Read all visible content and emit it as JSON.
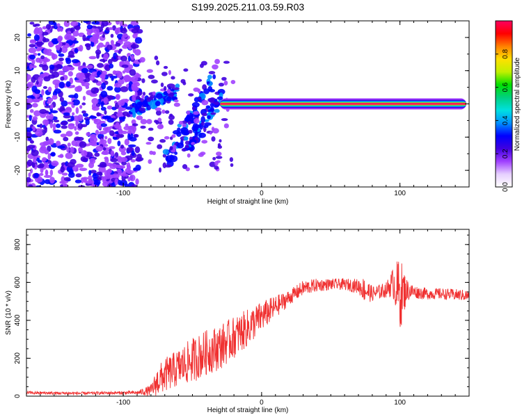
{
  "title": "S199.2025.211.03.59.R03",
  "colors": {
    "signal": "#f03030",
    "scatter": "#8a2be2",
    "frame": "#000000"
  },
  "colorbar": {
    "label": "Normalized spectral amplitude",
    "ticks": [
      "0.0",
      "0.2",
      "0.4",
      "0.6",
      "0.8"
    ],
    "range": [
      0,
      1
    ],
    "stops": [
      "#ffffff",
      "#e6d0ff",
      "#a040ff",
      "#4000e0",
      "#0000ff",
      "#0090ff",
      "#00e0e0",
      "#00d080",
      "#00e000",
      "#c0f000",
      "#ffe000",
      "#ff8000",
      "#ff0000",
      "#ff0060"
    ]
  },
  "chart_data": [
    {
      "type": "heatmap",
      "xlabel": "Height of straight line (km)",
      "ylabel": "Frequency (Hz)",
      "xlim": [
        -170,
        150
      ],
      "ylim": [
        -25,
        25
      ],
      "xticks": [
        -100,
        0,
        100
      ],
      "xtick_labels": [
        "-100",
        "0",
        "100"
      ],
      "yticks": [
        -20,
        -10,
        0,
        10,
        20
      ],
      "ytick_labels": [
        "-20",
        "-10",
        "0",
        "10",
        "20"
      ],
      "features": {
        "noise_region_x": [
          -170,
          -88
        ],
        "chirp_structures": [
          {
            "x": [
              -70,
              -35
            ],
            "y_start": -18,
            "y_end": 8
          },
          {
            "x": [
              -95,
              -60
            ],
            "y_start": -2,
            "y_end": 4
          },
          {
            "x": [
              -55,
              -30
            ],
            "y_start": -14,
            "y_end": 2
          }
        ],
        "carrier_line": {
          "x": [
            -30,
            150
          ],
          "frequency_hz": 0,
          "peak_amplitude": 0.95
        }
      }
    },
    {
      "type": "line",
      "xlabel": "Height of straight line (km)",
      "ylabel": "SNR (10 * v/v)",
      "xlim": [
        -170,
        150
      ],
      "ylim": [
        0,
        880
      ],
      "xticks": [
        -100,
        0,
        100
      ],
      "xtick_labels": [
        "-100",
        "0",
        "100"
      ],
      "yticks": [
        0,
        200,
        400,
        600,
        800
      ],
      "ytick_labels": [
        "0",
        "200",
        "400",
        "600",
        "800"
      ],
      "x": [
        -170,
        -150,
        -130,
        -110,
        -90,
        -80,
        -75,
        -70,
        -60,
        -50,
        -40,
        -30,
        -20,
        -10,
        0,
        10,
        20,
        30,
        40,
        50,
        60,
        70,
        75,
        80,
        90,
        95,
        100,
        105,
        110,
        120,
        130,
        140,
        150
      ],
      "y": [
        18,
        16,
        15,
        17,
        18,
        30,
        80,
        110,
        150,
        190,
        230,
        260,
        310,
        360,
        420,
        470,
        520,
        570,
        585,
        590,
        590,
        580,
        560,
        540,
        560,
        600,
        540,
        560,
        550,
        540,
        540,
        535,
        530
      ],
      "noise_amplitude": [
        8,
        8,
        8,
        8,
        10,
        30,
        80,
        90,
        100,
        120,
        120,
        120,
        110,
        100,
        80,
        60,
        40,
        40,
        35,
        30,
        30,
        40,
        70,
        40,
        40,
        80,
        200,
        60,
        35,
        30,
        30,
        30,
        30
      ]
    }
  ]
}
